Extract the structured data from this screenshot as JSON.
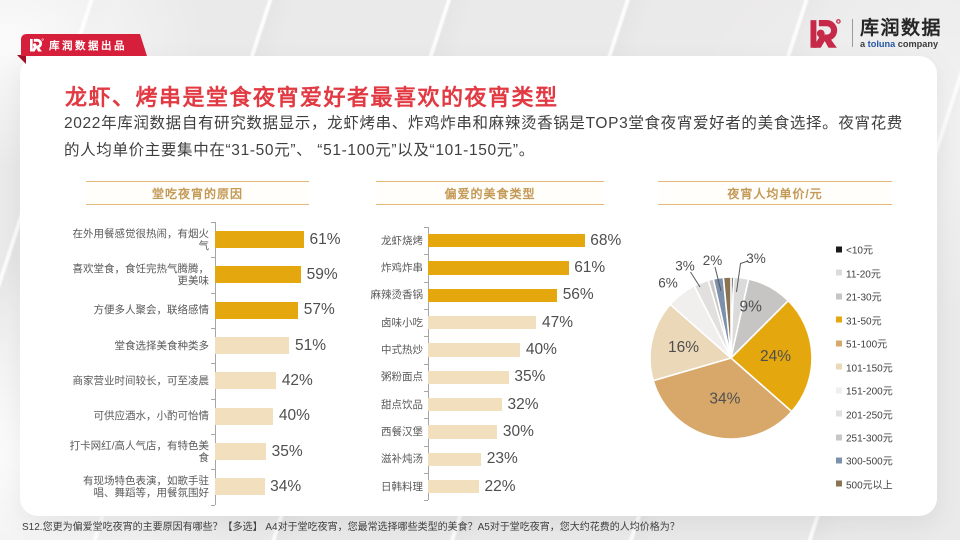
{
  "badge": {
    "label": "库润数据出品"
  },
  "brand": {
    "name": "库润数据",
    "tagline_prefix": "a ",
    "tagline_brand": "toluna",
    "tagline_suffix": " company"
  },
  "title": "龙虾、烤串是堂食夜宵爱好者最喜欢的夜宵类型",
  "intro": "2022年库润数据自有研究数据显示，龙虾烤串、炸鸡炸串和麻辣烫香锅是TOP3堂食夜宵爱好者的美食选择。夜宵花费的人均单价主要集中在“31-50元”、 “51-100元”以及“101-150元”。",
  "footnote": "S12.您更为偏爱堂吃夜宵的主要原因有哪些？【多选】  A4对于堂吃夜宵，您最常选择哪些类型的美食？A5对于堂吃夜宵，您大约花费的人均价格为？",
  "colors": {
    "ribbon_red": "#D6203B",
    "title_red": "#E23A43",
    "logo_red": "#C62A48",
    "toluna_blue": "#2456A4",
    "section_gold": "#C49A57",
    "section_border": "#E2B87B",
    "bar_gold": "#E4A70E",
    "bar_beige": "#F2DFBD"
  },
  "chart_data": [
    {
      "type": "bar",
      "orientation": "horizontal",
      "title": "堂吃夜宵的原因",
      "categories": [
        "在外用餐感觉很热闹，有烟火气",
        "喜欢堂食，食饪完热气腾腾，更美味",
        "方便多人聚会，联络感情",
        "堂食选择美食种类多",
        "商家营业时间较长，可至凌晨",
        "可供应酒水，小酌可怡情",
        "打卡网红/高人气店，有特色美食",
        "有现场特色表演，如歌手驻唱、舞蹈等，用餐氛围好"
      ],
      "values": [
        61,
        59,
        57,
        51,
        42,
        40,
        35,
        34
      ],
      "unit": "%",
      "highlighted_count": 3,
      "highlight_color": "#E4A70E",
      "base_color": "#F2DFBD"
    },
    {
      "type": "bar",
      "orientation": "horizontal",
      "title": "偏爱的美食类型",
      "categories": [
        "龙虾烧烤",
        "炸鸡炸串",
        "麻辣烫香锅",
        "卤味小吃",
        "中式热炒",
        "粥粉面点",
        "甜点饮品",
        "西餐汉堡",
        "滋补炖汤",
        "日韩料理"
      ],
      "values": [
        68,
        61,
        56,
        47,
        40,
        35,
        32,
        30,
        23,
        22
      ],
      "unit": "%",
      "highlighted_count": 3,
      "highlight_color": "#E4A70E",
      "base_color": "#F2DFBD"
    },
    {
      "type": "pie",
      "title": "夜宵人均单价/元",
      "legend_position": "right",
      "slices": [
        {
          "label": "<10元",
          "value": 0.5,
          "color": "#1A1A1A",
          "data_label": null
        },
        {
          "label": "11-20元",
          "value": 3,
          "color": "#DBDBDB",
          "data_label": "3%"
        },
        {
          "label": "21-30元",
          "value": 9,
          "color": "#C6C5C4",
          "data_label": "9%"
        },
        {
          "label": "31-50元",
          "value": 24,
          "color": "#E4A70E",
          "data_label": "24%"
        },
        {
          "label": "51-100元",
          "value": 34,
          "color": "#D8A86B",
          "data_label": "34%"
        },
        {
          "label": "101-150元",
          "value": 16,
          "color": "#EBD8B8",
          "data_label": "16%"
        },
        {
          "label": "151-200元",
          "value": 6,
          "color": "#F1EFEE",
          "data_label": "6%"
        },
        {
          "label": "201-250元",
          "value": 3,
          "color": "#E2E0DF",
          "data_label": "3%"
        },
        {
          "label": "251-300元",
          "value": 1,
          "color": "#C9C7C6",
          "data_label": null
        },
        {
          "label": "300-500元",
          "value": 2,
          "color": "#7C90AC",
          "data_label": "2%"
        },
        {
          "label": "500元以上",
          "value": 1.5,
          "color": "#8A7350",
          "data_label": null
        }
      ]
    }
  ]
}
